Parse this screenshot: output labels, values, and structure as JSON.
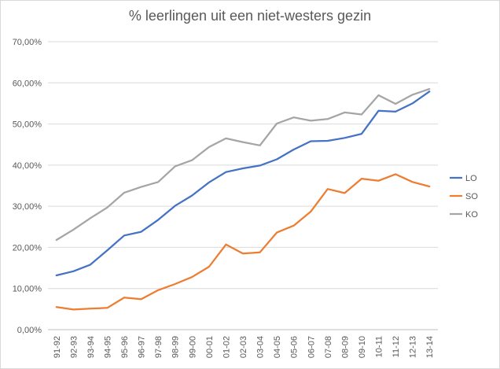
{
  "chart_data": {
    "type": "line",
    "title": "% leerlingen uit een niet-westers gezin",
    "xlabel": "",
    "ylabel": "",
    "categories": [
      "91-92",
      "92-93",
      "93-94",
      "94-95",
      "95-96",
      "96-97",
      "97-98",
      "98-99",
      "99-00",
      "00-01",
      "01-02",
      "02-03",
      "03-04",
      "04-05",
      "05-06",
      "06-07",
      "07-08",
      "08-09",
      "09-10",
      "10-11",
      "11-12",
      "12-13",
      "13-14"
    ],
    "y_ticks": [
      "0,00%",
      "10,00%",
      "20,00%",
      "30,00%",
      "40,00%",
      "50,00%",
      "60,00%",
      "70,00%"
    ],
    "ylim": [
      0,
      70
    ],
    "grid": true,
    "legend_position": "right",
    "series": [
      {
        "name": "LO",
        "color": "#4472c4",
        "values": [
          13.2,
          14.2,
          15.8,
          19.3,
          22.9,
          23.8,
          26.7,
          30.1,
          32.6,
          35.8,
          38.3,
          39.2,
          39.9,
          41.4,
          43.8,
          45.8,
          45.9,
          46.6,
          47.6,
          53.2,
          53.0,
          55.0,
          57.9
        ]
      },
      {
        "name": "SO",
        "color": "#ed7d31",
        "values": [
          5.5,
          4.9,
          5.1,
          5.3,
          7.8,
          7.4,
          9.6,
          11.1,
          12.8,
          15.3,
          20.7,
          18.5,
          18.8,
          23.6,
          25.3,
          28.7,
          34.2,
          33.2,
          36.7,
          36.2,
          37.8,
          35.9,
          34.8
        ]
      },
      {
        "name": "KO",
        "color": "#a5a5a5",
        "values": [
          21.8,
          24.3,
          27.1,
          29.7,
          33.3,
          34.7,
          35.9,
          39.7,
          41.2,
          44.4,
          46.5,
          45.6,
          44.8,
          50.1,
          51.6,
          50.8,
          51.2,
          52.8,
          52.3,
          57.0,
          54.9,
          57.1,
          58.5
        ]
      }
    ]
  }
}
